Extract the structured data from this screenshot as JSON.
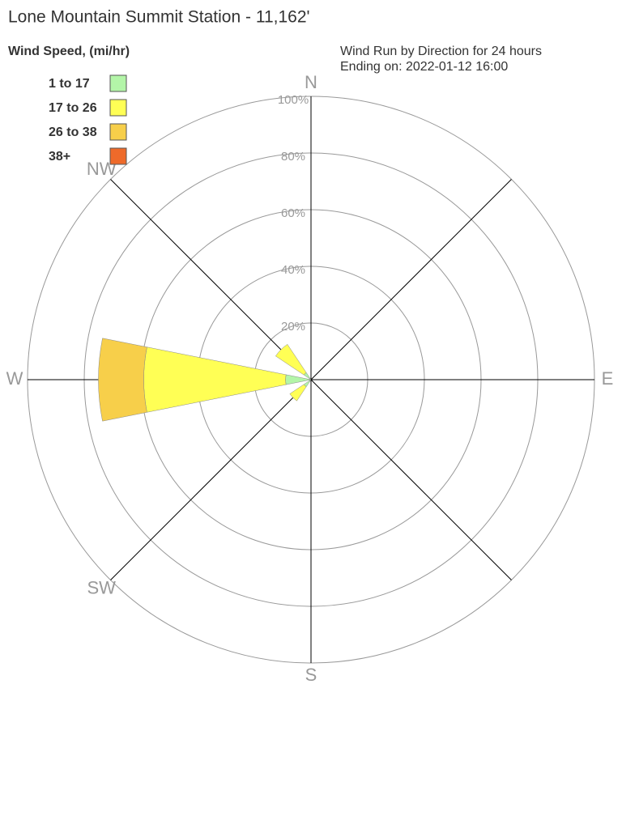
{
  "chart_data": {
    "type": "wind-rose",
    "title": "Lone Mountain Summit Station - 11,162'",
    "legend_title": "Wind Speed, (mi/hr)",
    "subtitle": [
      "Wind Run by Direction for 24 hours",
      "Ending on: 2022-01-12 16:00"
    ],
    "categories": [
      "N",
      null,
      null,
      null,
      "E",
      null,
      null,
      null,
      "S",
      null,
      "SW",
      null,
      "W",
      null,
      "NW",
      null
    ],
    "series": [
      {
        "name": "1 to 17",
        "color": "#b3f5a8",
        "values": [
          0,
          0,
          0,
          0,
          0,
          0,
          0,
          0,
          0,
          0,
          3,
          0,
          9,
          0,
          3,
          0
        ]
      },
      {
        "name": "17 to 26",
        "color": "#ffff55",
        "values": [
          0,
          0,
          0,
          0,
          0,
          0,
          0,
          0,
          0,
          0,
          6,
          0,
          50,
          0,
          12,
          0
        ]
      },
      {
        "name": "26 to 38",
        "color": "#f7cf4a",
        "values": [
          0,
          0,
          0,
          0,
          0,
          0,
          0,
          0,
          0,
          0,
          0,
          0,
          16,
          0,
          0,
          0
        ]
      },
      {
        "name": "38+",
        "color": "#ee6a2a",
        "values": [
          0,
          0,
          0,
          0,
          0,
          0,
          0,
          0,
          0,
          0,
          0,
          0,
          0,
          0,
          0,
          0
        ]
      }
    ],
    "rlim": [
      0,
      100
    ],
    "rticks": [
      {
        "value": 20,
        "label": "20%"
      },
      {
        "value": 40,
        "label": "40%"
      },
      {
        "value": 60,
        "label": "60%"
      },
      {
        "value": 80,
        "label": "80%"
      },
      {
        "value": 100,
        "label": "100%"
      }
    ],
    "grid": true
  }
}
